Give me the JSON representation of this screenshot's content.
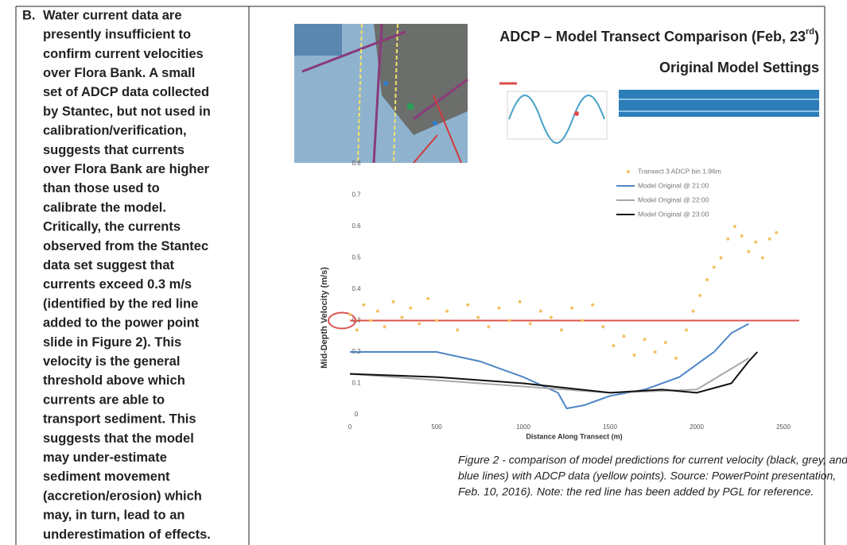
{
  "item": {
    "label": "B.",
    "lines": [
      "Water current data are",
      "presently insufficient to",
      "confirm current velocities",
      "over Flora Bank. A small",
      "set of ADCP data collected",
      "by Stantec, but not used in",
      "calibration/verification,",
      "suggests that currents",
      "over Flora Bank are higher",
      "than those used to",
      "calibrate the model.",
      "Critically, the currents",
      "observed from the Stantec",
      "data set suggest that",
      "currents exceed 0.3 m/s",
      "(identified by the red line",
      "added to the power point",
      "slide in Figure 2). This",
      "velocity is the general",
      "threshold above which",
      "currents are able to",
      "transport sediment. This",
      "suggests that the model",
      "may under-estimate",
      "sediment movement",
      "(accretion/erosion) which",
      "may, in turn, lead to an",
      "underestimation of effects."
    ]
  },
  "figure": {
    "slide_title": {
      "main": "ADCP – Model Transect Comparison (Feb, 23",
      "sup": "rd",
      "end": ")"
    },
    "slide_subtitle": "Original Model Settings",
    "chart": {
      "type": "line",
      "x_label": "Distance Along Transect (m)",
      "y_label": "Mid-Depth Velocity (m/s)",
      "xlim": [
        0,
        2500
      ],
      "ylim": [
        0,
        0.8
      ],
      "xticks": [
        0,
        500,
        1000,
        1500,
        2000,
        2500
      ],
      "yticks": [
        0,
        0.1,
        0.2,
        0.3,
        0.4,
        0.5,
        0.6,
        0.7,
        0.8
      ],
      "reference_line": {
        "value": 0.3,
        "color": "#d9534f"
      },
      "series": [
        {
          "name": "Transect 3 ADCP bin 1.96m",
          "type": "scatter",
          "color": "#f2c265",
          "x": [
            0,
            40,
            80,
            120,
            160,
            200,
            250,
            300,
            350,
            400,
            450,
            500,
            560,
            620,
            680,
            740,
            800,
            860,
            920,
            980,
            1040,
            1100,
            1160,
            1220,
            1280,
            1340,
            1400,
            1460,
            1520,
            1580,
            1640,
            1700,
            1760,
            1820,
            1880,
            1940,
            1980,
            2020,
            2060,
            2100,
            2140,
            2180,
            2220,
            2260,
            2300,
            2340,
            2380,
            2420,
            2460
          ],
          "values": [
            0.32,
            0.27,
            0.35,
            0.3,
            0.33,
            0.28,
            0.36,
            0.31,
            0.34,
            0.29,
            0.37,
            0.3,
            0.33,
            0.27,
            0.35,
            0.31,
            0.28,
            0.34,
            0.3,
            0.36,
            0.29,
            0.33,
            0.31,
            0.27,
            0.34,
            0.3,
            0.35,
            0.28,
            0.22,
            0.25,
            0.19,
            0.24,
            0.2,
            0.23,
            0.18,
            0.27,
            0.33,
            0.38,
            0.43,
            0.47,
            0.5,
            0.56,
            0.6,
            0.57,
            0.52,
            0.55,
            0.5,
            0.56,
            0.58
          ]
        },
        {
          "name": "Model Original @ 21:00",
          "type": "line",
          "color": "#4f86c6",
          "x": [
            0,
            500,
            750,
            1000,
            1200,
            1250,
            1350,
            1500,
            1700,
            1900,
            2100,
            2200,
            2300
          ],
          "values": [
            0.2,
            0.2,
            0.17,
            0.12,
            0.07,
            0.02,
            0.03,
            0.06,
            0.08,
            0.12,
            0.2,
            0.26,
            0.29
          ]
        },
        {
          "name": "Model Original @ 22:00",
          "type": "line",
          "color": "#a8a8a8",
          "x": [
            0,
            1000,
            1500,
            2000,
            2300
          ],
          "values": [
            0.13,
            0.09,
            0.07,
            0.08,
            0.18
          ]
        },
        {
          "name": "Model Original @ 23:00",
          "type": "line",
          "color": "#111111",
          "x": [
            0,
            500,
            1000,
            1500,
            1800,
            2000,
            2200,
            2300,
            2350
          ],
          "values": [
            0.13,
            0.12,
            0.1,
            0.07,
            0.08,
            0.07,
            0.1,
            0.17,
            0.2
          ]
        }
      ]
    },
    "caption": [
      "Figure 2 - comparison of model predictions for current velocity (black, grey, and",
      "blue lines) with ADCP data (yellow points). Source: PowerPoint presentation,",
      "Feb. 10, 2016). Note: the red line has been added by PGL for reference."
    ]
  }
}
